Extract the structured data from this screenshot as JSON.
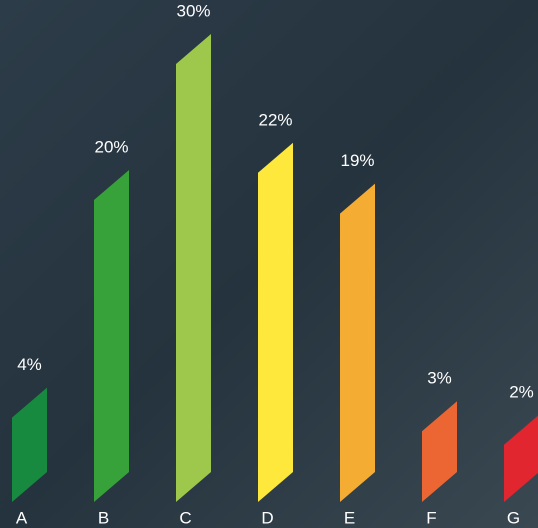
{
  "chart_data": {
    "type": "bar",
    "categories": [
      "A",
      "B",
      "C",
      "D",
      "E",
      "F",
      "G"
    ],
    "values": [
      4,
      20,
      30,
      22,
      19,
      3,
      2
    ],
    "value_labels": [
      "4%",
      "20%",
      "30%",
      "22%",
      "19%",
      "3%",
      "2%"
    ],
    "colors": [
      "#178a3f",
      "#38a23a",
      "#9ec84b",
      "#fde83b",
      "#f4ac33",
      "#ec6633",
      "#e2262f"
    ]
  }
}
